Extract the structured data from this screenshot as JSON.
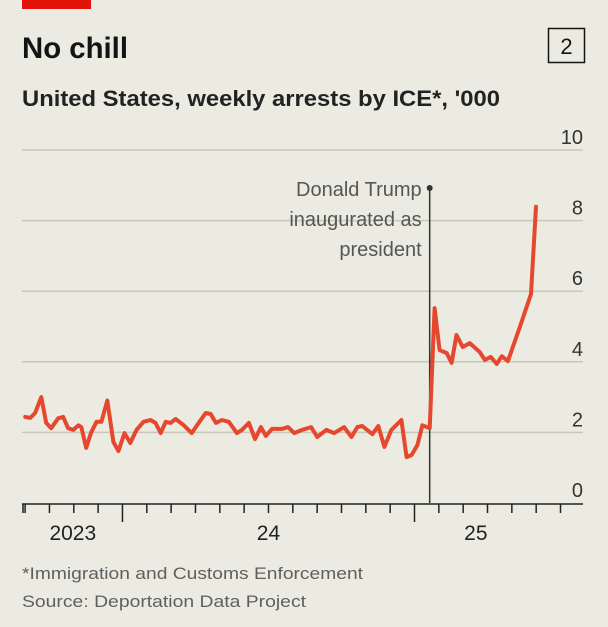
{
  "chart_data": {
    "type": "line",
    "title": "No chill",
    "subtitle": "United States, weekly arrests by ICE*, '000",
    "chart_number": "2",
    "xlabel": "",
    "ylabel": "",
    "ylim": [
      0,
      10
    ],
    "yticks": [
      "0",
      "2",
      "4",
      "6",
      "8",
      "10"
    ],
    "ytick_values": [
      0,
      2,
      4,
      6,
      8,
      10
    ],
    "xlim": [
      2023.656,
      2025.577
    ],
    "xtick_labels": [
      {
        "label": "2023",
        "center": 2023.83
      },
      {
        "label": "24",
        "center": 2024.5
      },
      {
        "label": "25",
        "center": 2025.21
      }
    ],
    "major_ticks": [
      2024,
      2025
    ],
    "grid": true,
    "line_color": "#e6472f",
    "accent_color": "#e3120b",
    "annotation": {
      "x": 2025.052,
      "lines": [
        "Donald Trump",
        "inaugurated as",
        "president"
      ]
    },
    "series": [
      {
        "name": "Weekly arrests ('000)",
        "x": [
          2023.667,
          2023.684,
          2023.701,
          2023.722,
          2023.739,
          2023.756,
          2023.78,
          2023.797,
          2023.814,
          2023.832,
          2023.849,
          2023.859,
          2023.876,
          2023.893,
          2023.911,
          2023.928,
          2023.948,
          2023.969,
          2023.986,
          2024.007,
          2024.027,
          2024.048,
          2024.072,
          2024.096,
          2024.113,
          2024.131,
          2024.148,
          2024.165,
          2024.182,
          2024.21,
          2024.237,
          2024.261,
          2024.285,
          2024.302,
          2024.32,
          2024.34,
          2024.364,
          2024.392,
          2024.409,
          2024.433,
          2024.454,
          2024.474,
          2024.491,
          2024.512,
          2024.546,
          2024.567,
          2024.588,
          2024.615,
          2024.646,
          2024.667,
          2024.698,
          2024.725,
          2024.759,
          2024.784,
          2024.804,
          2024.821,
          2024.856,
          2024.876,
          2024.897,
          2024.921,
          2024.955,
          2024.973,
          2024.99,
          2025.01,
          2025.027,
          2025.052,
          2025.069,
          2025.086,
          2025.11,
          2025.127,
          2025.144,
          2025.165,
          2025.189,
          2025.223,
          2025.241,
          2025.261,
          2025.282,
          2025.299,
          2025.32,
          2025.361,
          2025.399,
          2025.416
        ],
        "values": [
          2.44,
          2.41,
          2.55,
          3.0,
          2.27,
          2.12,
          2.4,
          2.44,
          2.12,
          2.07,
          2.2,
          2.15,
          1.56,
          2.0,
          2.3,
          2.3,
          2.9,
          1.73,
          1.47,
          1.98,
          1.7,
          2.07,
          2.3,
          2.35,
          2.27,
          1.98,
          2.3,
          2.27,
          2.38,
          2.2,
          1.98,
          2.27,
          2.55,
          2.52,
          2.27,
          2.35,
          2.3,
          1.98,
          2.07,
          2.27,
          1.81,
          2.15,
          1.9,
          2.1,
          2.1,
          2.15,
          1.98,
          2.07,
          2.15,
          1.87,
          2.07,
          1.98,
          2.15,
          1.87,
          2.15,
          2.18,
          1.95,
          2.18,
          1.59,
          2.07,
          2.35,
          1.3,
          1.36,
          1.64,
          2.2,
          2.12,
          5.52,
          4.33,
          4.25,
          3.97,
          4.76,
          4.42,
          4.53,
          4.28,
          4.05,
          4.14,
          3.94,
          4.16,
          4.02,
          4.99,
          5.92,
          8.39
        ]
      }
    ],
    "footnote": "*Immigration and Customs Enforcement",
    "source": "Source: Deportation Data Project"
  }
}
